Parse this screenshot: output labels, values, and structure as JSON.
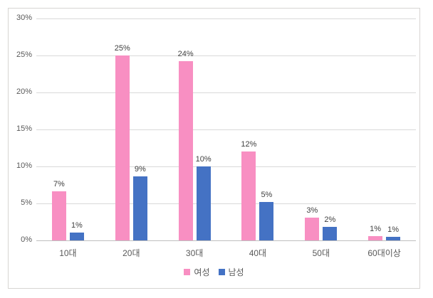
{
  "chart_data": {
    "type": "bar",
    "title": "",
    "categories": [
      "10대",
      "20대",
      "30대",
      "40대",
      "50대",
      "60대이상"
    ],
    "series": [
      {
        "name": "여성",
        "color": "#f88fc2",
        "values": [
          6.6,
          25.0,
          24.2,
          12.0,
          3.1,
          0.6
        ],
        "labels": [
          "7%",
          "25%",
          "24%",
          "12%",
          "3%",
          "1%"
        ]
      },
      {
        "name": "남성",
        "color": "#4472c4",
        "values": [
          1.1,
          8.7,
          10.0,
          5.2,
          1.8,
          0.5
        ],
        "labels": [
          "1%",
          "9%",
          "10%",
          "5%",
          "2%",
          "1%"
        ]
      }
    ],
    "y_axis": {
      "min": 0,
      "max": 30,
      "step": 5,
      "ticks": [
        "0%",
        "5%",
        "10%",
        "15%",
        "20%",
        "25%",
        "30%"
      ]
    },
    "x_axis_label": "",
    "y_axis_label": "",
    "grid": true,
    "legend_position": "bottom"
  }
}
